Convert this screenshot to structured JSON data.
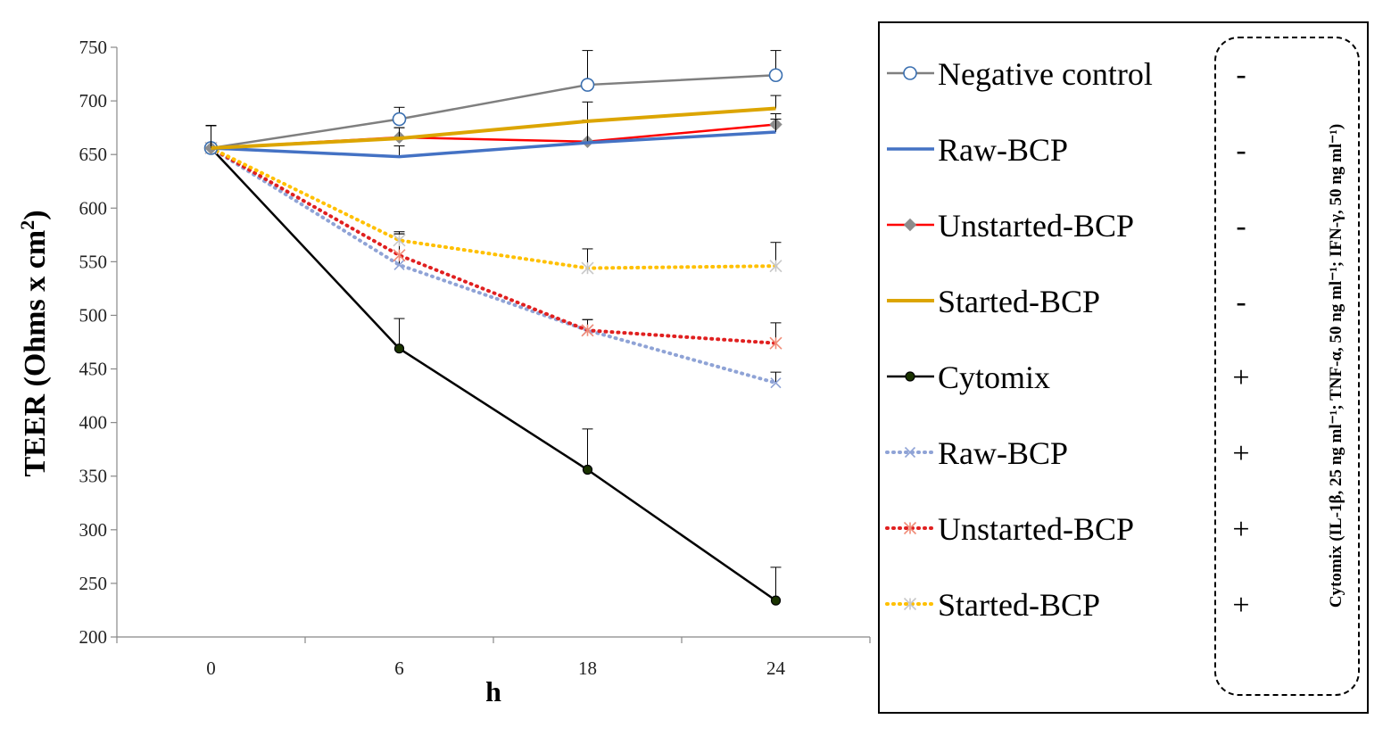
{
  "chart_data": {
    "type": "line",
    "title": "",
    "xlabel": "h",
    "ylabel": "TEER (Ohms x cm²)",
    "ylabel_main": "TEER (Ohms x cm",
    "ylabel_sup": "2",
    "ylabel_end": ")",
    "categories": [
      "0",
      "6",
      "18",
      "24"
    ],
    "ylim": [
      200,
      750
    ],
    "yticks": [
      200,
      250,
      300,
      350,
      400,
      450,
      500,
      550,
      600,
      650,
      700,
      750
    ],
    "grid": false,
    "legend_position": "right",
    "series": [
      {
        "name": "Negative control",
        "cytomix": "-",
        "values": [
          656,
          683,
          715,
          724
        ],
        "errors": [
          21,
          11,
          32,
          23
        ],
        "color": "#7f7f7f",
        "dash": "solid",
        "marker": "circle-open"
      },
      {
        "name": "Raw-BCP",
        "cytomix": "-",
        "values": [
          656,
          648,
          661,
          671
        ],
        "errors": [
          21,
          10,
          21,
          12
        ],
        "color": "#4472c4",
        "dash": "solid",
        "marker": "none"
      },
      {
        "name": "Unstarted-BCP",
        "cytomix": "-",
        "values": [
          656,
          666,
          662,
          678
        ],
        "errors": [
          21,
          9,
          19,
          10
        ],
        "color": "#ff0000",
        "dash": "solid",
        "marker": "diamond"
      },
      {
        "name": "Started-BCP",
        "cytomix": "-",
        "values": [
          656,
          665,
          681,
          693
        ],
        "errors": [
          21,
          10,
          18,
          12
        ],
        "color": "#dca500",
        "dash": "solid",
        "marker": "none"
      },
      {
        "name": "Cytomix",
        "cytomix": "+",
        "values": [
          656,
          469,
          356,
          234
        ],
        "errors": [
          21,
          28,
          38,
          31
        ],
        "color": "#000000",
        "dash": "solid",
        "marker": "dot-filled"
      },
      {
        "name": "Raw-BCP",
        "cytomix": "+",
        "values": [
          656,
          547,
          486,
          437
        ],
        "errors": [
          21,
          29,
          10,
          10
        ],
        "color": "#8fa3d6",
        "dash": "dotted",
        "marker": "x"
      },
      {
        "name": "Unstarted-BCP",
        "cytomix": "+",
        "values": [
          656,
          556,
          486,
          474
        ],
        "errors": [
          21,
          20,
          10,
          19
        ],
        "color": "#e02020",
        "dash": "dotted",
        "marker": "star"
      },
      {
        "name": "Started-BCP",
        "cytomix": "+",
        "values": [
          656,
          570,
          544,
          546
        ],
        "errors": [
          21,
          8,
          18,
          22
        ],
        "color": "#ffc000",
        "dash": "dotted",
        "marker": "star-light"
      }
    ],
    "cytomix_note": "Cytomix (IL-1β, 25 ng ml⁻¹; TNF-α, 50 ng ml⁻¹; IFN-γ, 50 ng ml⁻¹)"
  }
}
